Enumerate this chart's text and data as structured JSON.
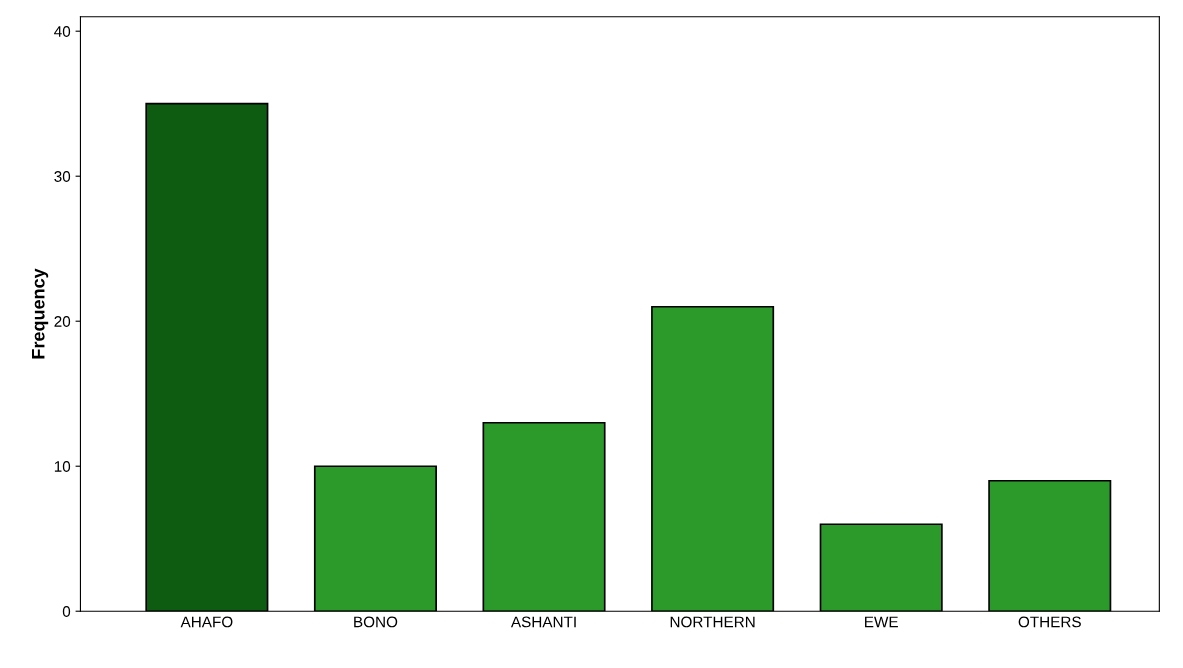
{
  "chart_data": {
    "type": "bar",
    "ylabel": "Frequency",
    "categories": [
      "AHAFO",
      "BONO",
      "ASHANTI",
      "NORTHERN",
      "EWE",
      "OTHERS"
    ],
    "values": [
      35,
      10,
      13,
      21,
      6,
      9
    ],
    "colors": [
      "#0d5c12",
      "#2b9a2b",
      "#2b9a2b",
      "#2b9a2b",
      "#2b9a2b",
      "#2b9a2b"
    ],
    "ylim": [
      0,
      41
    ],
    "yticks": [
      0,
      10,
      20,
      30,
      40
    ],
    "grid": false
  }
}
